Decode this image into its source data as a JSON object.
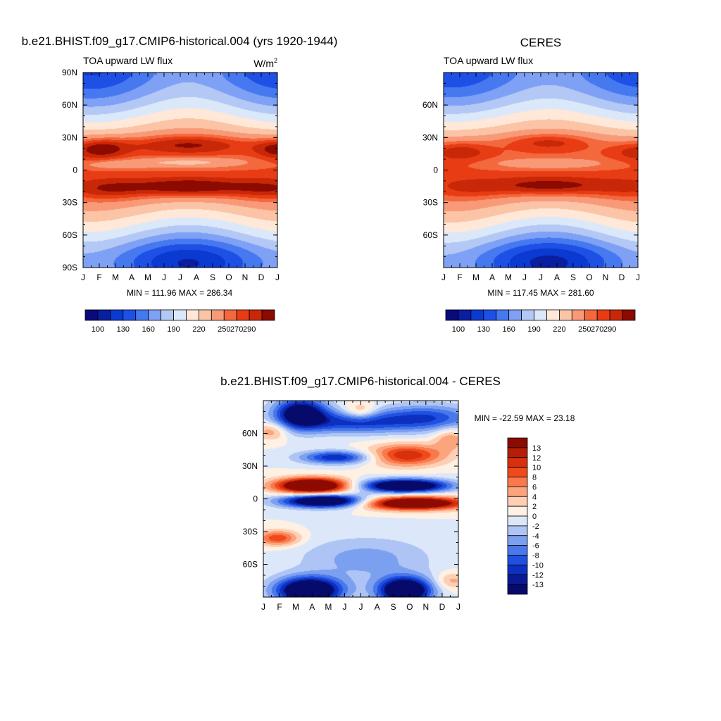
{
  "chart_data": [
    {
      "type": "heatmap",
      "title": "b.e21.BHIST.f09_g17.CMIP6-historical.004 (yrs 1920-1944)",
      "subtitle_left": "TOA upward LW flux",
      "units": "W/m",
      "units_sup": "2",
      "x_labels": [
        "J",
        "F",
        "M",
        "A",
        "M",
        "J",
        "J",
        "A",
        "S",
        "O",
        "N",
        "D",
        "J"
      ],
      "y_labels": [
        "90N",
        "60N",
        "30N",
        "0",
        "30S",
        "60S",
        "90S"
      ],
      "stats": "MIN = 111.96 MAX = 286.34",
      "colorbar_labels": [
        "100",
        "130",
        "160",
        "190",
        "220",
        "250",
        "270",
        "290"
      ],
      "colorbar_colors": [
        "#0a0a7a",
        "#0a1ea0",
        "#0a3ad0",
        "#1e50e6",
        "#4678f0",
        "#7ea0f5",
        "#b4c8f5",
        "#dbe8fa",
        "#ffe8d8",
        "#fcc4a6",
        "#f89a78",
        "#f4683e",
        "#e83c14",
        "#c82808",
        "#8c0a00"
      ]
    },
    {
      "type": "heatmap",
      "title": "CERES",
      "subtitle_left": "TOA upward LW flux",
      "x_labels": [
        "J",
        "F",
        "M",
        "A",
        "M",
        "J",
        "J",
        "A",
        "S",
        "O",
        "N",
        "D",
        "J"
      ],
      "y_labels": [
        "60N",
        "30N",
        "0",
        "30S",
        "60S"
      ],
      "stats": "MIN = 117.45 MAX = 281.60",
      "colorbar_labels": [
        "100",
        "130",
        "160",
        "190",
        "220",
        "250",
        "270",
        "290"
      ],
      "colorbar_colors": [
        "#0a0a7a",
        "#0a1ea0",
        "#0a3ad0",
        "#1e50e6",
        "#4678f0",
        "#7ea0f5",
        "#b4c8f5",
        "#dbe8fa",
        "#ffe8d8",
        "#fcc4a6",
        "#f89a78",
        "#f4683e",
        "#e83c14",
        "#c82808",
        "#8c0a00"
      ]
    },
    {
      "type": "heatmap",
      "title": "b.e21.BHIST.f09_g17.CMIP6-historical.004 - CERES",
      "x_labels": [
        "J",
        "F",
        "M",
        "A",
        "M",
        "J",
        "J",
        "A",
        "S",
        "O",
        "N",
        "D",
        "J"
      ],
      "y_labels": [
        "60N",
        "30N",
        "0",
        "30S",
        "60S"
      ],
      "stats": "MIN = -22.59 MAX =  23.18",
      "colorbar_labels": [
        "13",
        "12",
        "10",
        "8",
        "6",
        "4",
        "2",
        "0",
        "-2",
        "-4",
        "-6",
        "-8",
        "-10",
        "-12",
        "-13"
      ],
      "colorbar_colors": [
        "#8c0a00",
        "#b41e06",
        "#d8300c",
        "#f04a1c",
        "#f87a4c",
        "#fba57e",
        "#fdcfb4",
        "#fff0e4",
        "#dce8fa",
        "#aec4f4",
        "#7ca0f0",
        "#4a78ea",
        "#2050e0",
        "#0c30c0",
        "#0a1a96",
        "#060a6a"
      ]
    }
  ]
}
